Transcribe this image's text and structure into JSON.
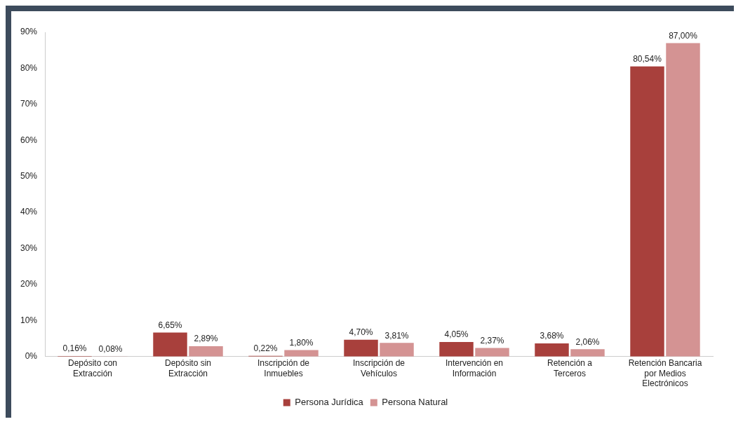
{
  "chart_data": {
    "type": "bar",
    "categories": [
      "Depósito con Extracción",
      "Depósito sin Extracción",
      "Inscripción de Inmuebles",
      "Inscripción de Vehículos",
      "Intervención en Información",
      "Retención a Terceros",
      "Retención Bancaria por Medios Electrónicos"
    ],
    "series": [
      {
        "name": "Persona Jurídica",
        "color": "#a8403c",
        "values": [
          0.16,
          6.65,
          0.22,
          4.7,
          4.05,
          3.68,
          80.54
        ],
        "value_labels": [
          "0,16%",
          "6,65%",
          "0,22%",
          "4,70%",
          "4,05%",
          "3,68%",
          "80,54%"
        ]
      },
      {
        "name": "Persona Natural",
        "color": "#d49393",
        "values": [
          0.08,
          2.89,
          1.8,
          3.81,
          2.37,
          2.06,
          87.0
        ],
        "value_labels": [
          "0,08%",
          "2,89%",
          "1,80%",
          "3,81%",
          "2,37%",
          "2,06%",
          "87,00%"
        ]
      }
    ],
    "ylim": [
      0,
      90
    ],
    "yticks": [
      {
        "value": 0,
        "label": "0%"
      },
      {
        "value": 10,
        "label": "10%"
      },
      {
        "value": 20,
        "label": "20%"
      },
      {
        "value": 30,
        "label": "30%"
      },
      {
        "value": 40,
        "label": "40%"
      },
      {
        "value": 50,
        "label": "50%"
      },
      {
        "value": 60,
        "label": "60%"
      },
      {
        "value": 70,
        "label": "70%"
      },
      {
        "value": 80,
        "label": "80%"
      },
      {
        "value": 90,
        "label": "90%"
      }
    ],
    "grid": false,
    "legend": "bottom"
  }
}
